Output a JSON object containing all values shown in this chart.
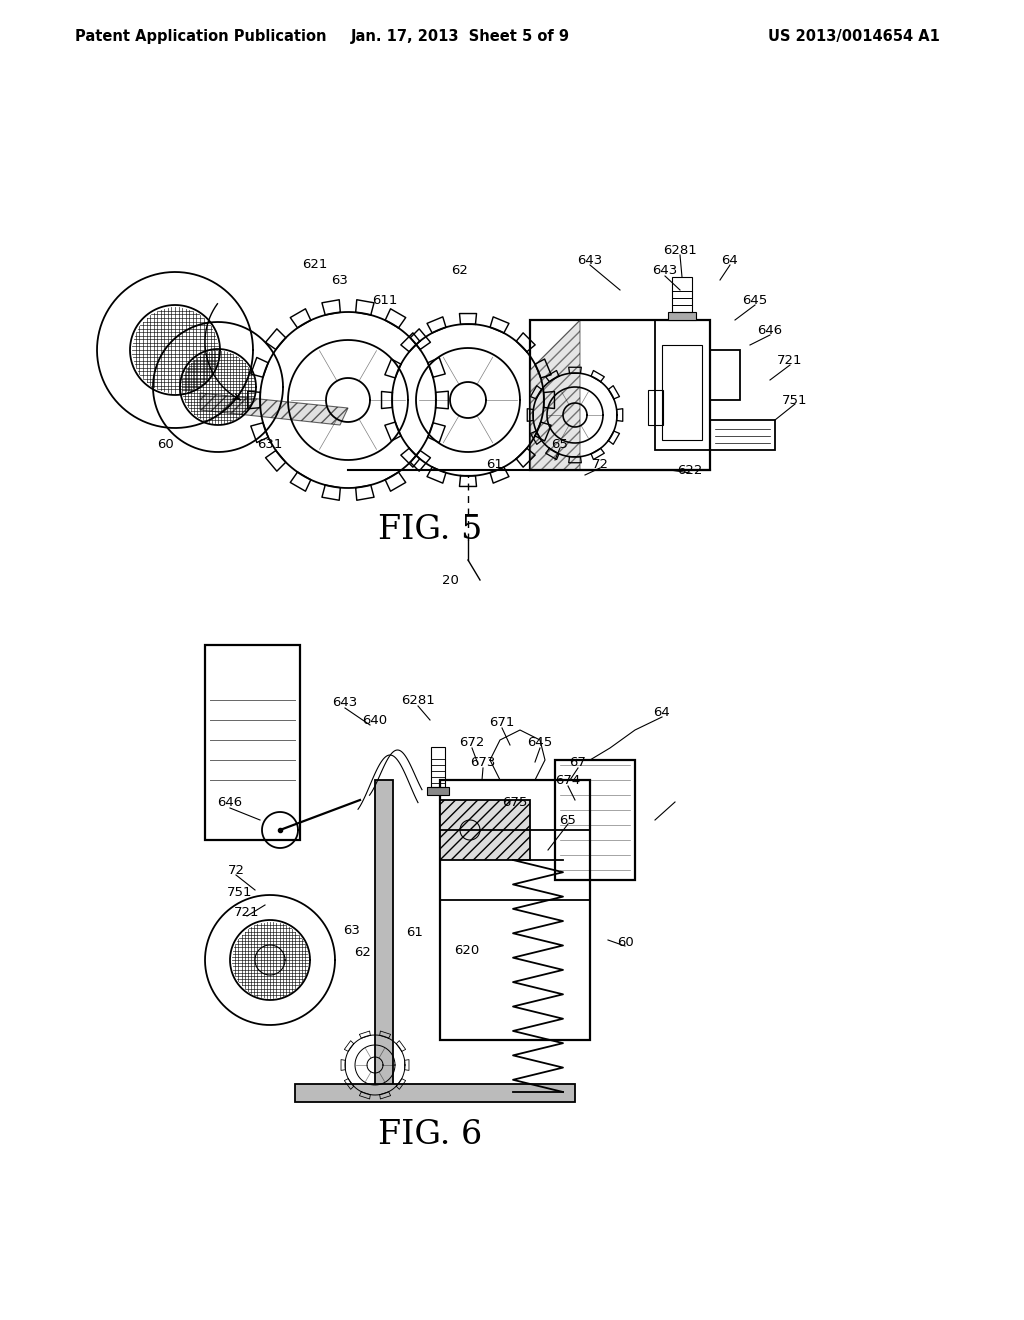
{
  "background_color": "#ffffff",
  "header_left": "Patent Application Publication",
  "header_center": "Jan. 17, 2013  Sheet 5 of 9",
  "header_right": "US 2013/0014654 A1",
  "fig5_label": "FIG. 5",
  "fig6_label": "FIG. 6",
  "header_fontsize": 10.5,
  "fig_label_fontsize": 24,
  "note_fontsize": 9.5,
  "lw_main": 1.3,
  "lw_thin": 0.8
}
